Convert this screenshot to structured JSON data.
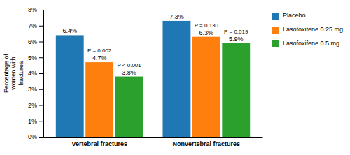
{
  "chart_data": {
    "type": "bar",
    "categories": [
      "Vertebral fractures",
      "Nonvertebral fractures"
    ],
    "series": [
      {
        "name": "Placebo",
        "values": [
          6.4,
          7.3
        ],
        "value_labels": [
          "6.4%",
          "7.3%"
        ]
      },
      {
        "name": "Lasofoxifene 0.25 mg",
        "values": [
          4.7,
          6.3
        ],
        "value_labels": [
          "4.7%",
          "6.3%"
        ]
      },
      {
        "name": "Lasofoxifene 0.5 mg",
        "values": [
          3.8,
          5.9
        ],
        "value_labels": [
          "3.8%",
          "5.9%"
        ]
      }
    ],
    "ylabel": "Percentage of\nwomen with\nfractures",
    "ylim": [
      0,
      8
    ],
    "yticks": [
      {
        "value": 0,
        "label": "0%"
      },
      {
        "value": 1,
        "label": "1%"
      },
      {
        "value": 2,
        "label": "2%"
      },
      {
        "value": 3,
        "label": "3%"
      },
      {
        "value": 4,
        "label": "4%"
      },
      {
        "value": 5,
        "label": "5%"
      },
      {
        "value": 6,
        "label": "6%"
      },
      {
        "value": 7,
        "label": "7%"
      },
      {
        "value": 8,
        "label": "8%"
      }
    ],
    "annotations": [
      {
        "text": "P = 0.002",
        "series": "Lasofoxifene 0.25 mg",
        "category": "Vertebral fractures"
      },
      {
        "text": "P < 0.001",
        "series": "Lasofoxifene 0.5 mg",
        "category": "Vertebral fractures"
      },
      {
        "text": "P = 0.130",
        "series": "Lasofoxifene 0.25 mg",
        "category": "Nonvertebral fractures"
      },
      {
        "text": "P = 0.019",
        "series": "Lasofoxifene 0.5 mg",
        "category": "Nonvertebral fractures"
      }
    ],
    "data_labels": true,
    "grid": false,
    "legend": "right"
  }
}
